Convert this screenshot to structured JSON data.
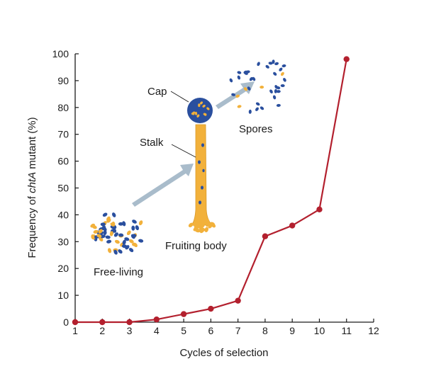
{
  "chart_data": {
    "type": "line",
    "title": "",
    "xlabel": "Cycles of selection",
    "ylabel_prefix": "Frequency of ",
    "ylabel_italic": "chtA",
    "ylabel_suffix": " mutant (%)",
    "xlim": [
      1,
      12
    ],
    "ylim": [
      0,
      100
    ],
    "x_ticks": [
      1,
      2,
      3,
      4,
      5,
      6,
      7,
      8,
      9,
      10,
      11,
      12
    ],
    "y_ticks": [
      0,
      10,
      20,
      30,
      40,
      50,
      60,
      70,
      80,
      90,
      100
    ],
    "grid": false,
    "legend": "none",
    "series": [
      {
        "x": [
          1,
          2,
          3,
          4,
          5,
          6,
          7,
          8,
          9,
          10,
          11
        ],
        "y": [
          0,
          0,
          0,
          1,
          3,
          5,
          8,
          32,
          36,
          42,
          98
        ],
        "color": "#b3202e"
      }
    ],
    "annotations": {
      "cap": "Cap",
      "stalk": "Stalk",
      "spores": "Spores",
      "fruiting_body": "Fruiting body",
      "free_living": "Free-living"
    }
  },
  "colors": {
    "axis": "#1a1a1a",
    "line": "#b3202e",
    "cell_blue": "#2a4f9e",
    "cell_orange": "#f2b13b",
    "arrow": "#a9bccb"
  }
}
